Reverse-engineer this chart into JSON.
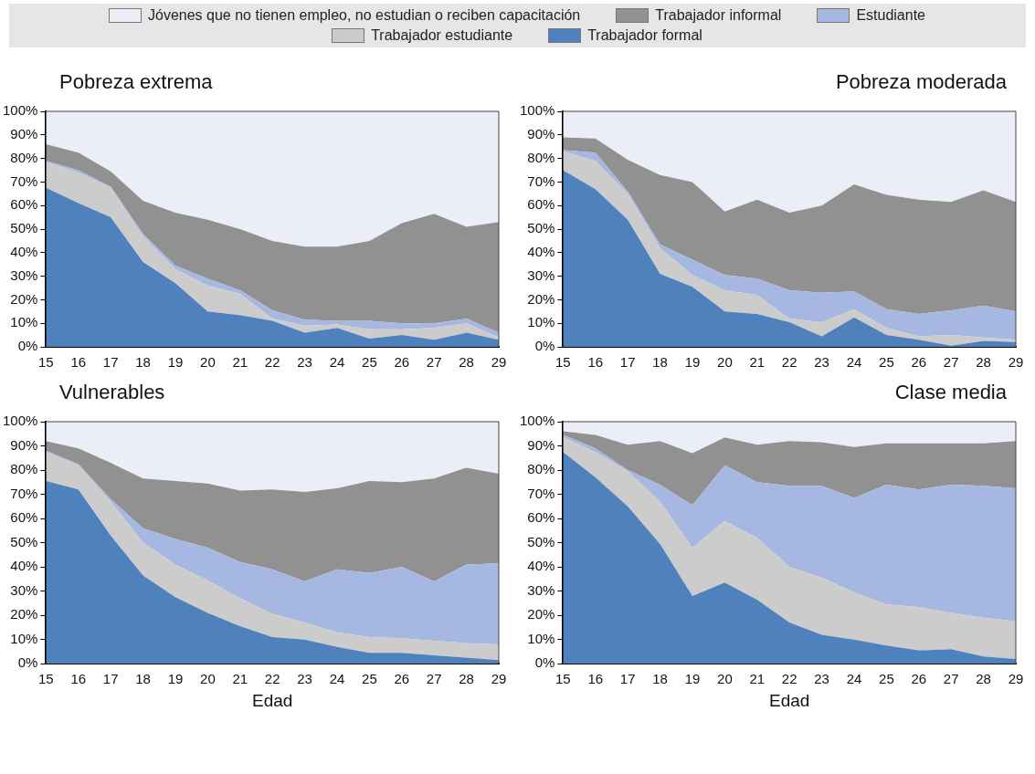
{
  "chart_data": [
    {
      "type": "area",
      "title": "Pobreza extrema",
      "stacked": true,
      "legend": "top",
      "marker": "none",
      "x": [
        15,
        16,
        17,
        18,
        19,
        20,
        21,
        22,
        23,
        24,
        25,
        26,
        27,
        28,
        29
      ],
      "xlim": [
        15,
        29
      ],
      "xticks": [
        15,
        16,
        17,
        18,
        19,
        20,
        21,
        22,
        23,
        24,
        25,
        26,
        27,
        28,
        29
      ],
      "ylim": [
        0,
        100
      ],
      "yticks": [
        {
          "value": 0,
          "label": "0%"
        },
        {
          "value": 10,
          "label": "10%"
        },
        {
          "value": 20,
          "label": "20%"
        },
        {
          "value": 30,
          "label": "30%"
        },
        {
          "value": 40,
          "label": "40%"
        },
        {
          "value": 50,
          "label": "50%"
        },
        {
          "value": 60,
          "label": "60%"
        },
        {
          "value": 70,
          "label": "70%"
        },
        {
          "value": 80,
          "label": "80%"
        },
        {
          "value": 90,
          "label": "90%"
        },
        {
          "value": 100,
          "label": "100%"
        }
      ],
      "series": [
        {
          "name": "Trabajador formal",
          "color": "#4f81bd",
          "values": [
            67.5,
            61,
            55,
            36,
            27,
            15,
            13.5,
            11,
            6,
            8,
            3.5,
            5,
            3,
            6,
            3
          ]
        },
        {
          "name": "Trabajador estudiante",
          "color": "#cccccc",
          "values": [
            11,
            13,
            12.5,
            11,
            6,
            11,
            9,
            1,
            3,
            1.5,
            4,
            2.5,
            5,
            4,
            1
          ]
        },
        {
          "name": "Estudiante",
          "color": "#a6b7e1",
          "values": [
            0.5,
            1,
            0.5,
            1,
            1.5,
            3,
            1.5,
            3.5,
            2.5,
            1.5,
            3.5,
            2.5,
            2,
            2,
            2
          ]
        },
        {
          "name": "Trabajador informal",
          "color": "#919191",
          "values": [
            7,
            7.5,
            6.5,
            14,
            22.5,
            25,
            26,
            29.5,
            31,
            31.5,
            34,
            42.5,
            46.5,
            39,
            47
          ]
        },
        {
          "name": "Jóvenes que no tienen empleo, no estudian o reciben capacitación",
          "color": "#eceef7",
          "values": [
            14,
            17.5,
            25.5,
            38,
            43,
            46,
            50,
            55,
            57.5,
            57.5,
            55,
            47.5,
            43.5,
            49,
            47
          ]
        }
      ]
    },
    {
      "type": "area",
      "title": "Pobreza moderada",
      "stacked": true,
      "marker": "none",
      "x": [
        15,
        16,
        17,
        18,
        19,
        20,
        21,
        22,
        23,
        24,
        25,
        26,
        27,
        28,
        29
      ],
      "xlim": [
        15,
        29
      ],
      "xticks": [
        15,
        16,
        17,
        18,
        19,
        20,
        21,
        22,
        23,
        24,
        25,
        26,
        27,
        28,
        29
      ],
      "ylim": [
        0,
        100
      ],
      "yticks": [
        {
          "value": 0,
          "label": "0%"
        },
        {
          "value": 10,
          "label": "10%"
        },
        {
          "value": 20,
          "label": "20%"
        },
        {
          "value": 30,
          "label": "30%"
        },
        {
          "value": 40,
          "label": "40%"
        },
        {
          "value": 50,
          "label": "50%"
        },
        {
          "value": 60,
          "label": "60%"
        },
        {
          "value": 70,
          "label": "70%"
        },
        {
          "value": 80,
          "label": "80%"
        },
        {
          "value": 90,
          "label": "90%"
        },
        {
          "value": 100,
          "label": "100%"
        }
      ],
      "series": [
        {
          "color": "#4f81bd",
          "values": [
            75,
            67,
            54,
            31,
            25.5,
            15,
            14,
            10.5,
            4.5,
            12.5,
            5,
            3,
            0.5,
            2.5,
            2
          ]
        },
        {
          "color": "#cccccc",
          "values": [
            8,
            12,
            11,
            11,
            5,
            9,
            8,
            1.5,
            6,
            3.5,
            3,
            1.5,
            4.5,
            1.5,
            1
          ]
        },
        {
          "color": "#a6b7e1",
          "values": [
            0.5,
            3.5,
            1,
            1.5,
            6.5,
            6.5,
            7,
            12,
            12.5,
            7.5,
            8,
            9.5,
            10.5,
            13.5,
            12
          ]
        },
        {
          "color": "#919191",
          "values": [
            5.5,
            6,
            13.5,
            29.5,
            33,
            27,
            33.5,
            33,
            37,
            45.5,
            48.5,
            48.5,
            46,
            49,
            46.5
          ]
        },
        {
          "color": "#eceef7",
          "values": [
            11,
            11.5,
            20.5,
            27,
            30,
            42.5,
            37.5,
            43,
            40,
            31,
            35.5,
            37.5,
            38.5,
            33.5,
            38.5
          ]
        }
      ]
    },
    {
      "type": "area",
      "title": "Vulnerables",
      "xlabel": "Edad",
      "stacked": true,
      "marker": "none",
      "x": [
        15,
        16,
        17,
        18,
        19,
        20,
        21,
        22,
        23,
        24,
        25,
        26,
        27,
        28,
        29
      ],
      "xlim": [
        15,
        29
      ],
      "xticks": [
        15,
        16,
        17,
        18,
        19,
        20,
        21,
        22,
        23,
        24,
        25,
        26,
        27,
        28,
        29
      ],
      "ylim": [
        0,
        100
      ],
      "yticks": [
        {
          "value": 0,
          "label": "0%"
        },
        {
          "value": 10,
          "label": "10%"
        },
        {
          "value": 20,
          "label": "20%"
        },
        {
          "value": 30,
          "label": "30%"
        },
        {
          "value": 40,
          "label": "40%"
        },
        {
          "value": 50,
          "label": "50%"
        },
        {
          "value": 60,
          "label": "60%"
        },
        {
          "value": 70,
          "label": "70%"
        },
        {
          "value": 80,
          "label": "80%"
        },
        {
          "value": 90,
          "label": "90%"
        },
        {
          "value": 100,
          "label": "100%"
        }
      ],
      "series": [
        {
          "color": "#4f81bd",
          "values": [
            75.5,
            72,
            53,
            36.5,
            27.5,
            21,
            15.5,
            11,
            10,
            7,
            4.5,
            4.5,
            3.5,
            2.5,
            1.5
          ]
        },
        {
          "color": "#cccccc",
          "values": [
            12,
            10,
            14,
            13.5,
            13.5,
            13.5,
            11.5,
            9.5,
            7,
            6,
            6.5,
            6,
            6,
            6,
            6.5
          ]
        },
        {
          "color": "#a6b7e1",
          "values": [
            0.5,
            0.5,
            1,
            6,
            10.5,
            13.5,
            15,
            18.5,
            17,
            26,
            26.5,
            29.5,
            24.5,
            32.5,
            33.5
          ]
        },
        {
          "color": "#919191",
          "values": [
            4,
            6.5,
            15,
            20.5,
            24,
            26.5,
            29.5,
            33,
            37,
            33.5,
            38,
            35,
            42.5,
            40,
            37
          ]
        },
        {
          "color": "#eceef7",
          "values": [
            8,
            11,
            17,
            23.5,
            24.5,
            25.5,
            28.5,
            28,
            29,
            27.5,
            24.5,
            25,
            23.5,
            19,
            21.5
          ]
        }
      ]
    },
    {
      "type": "area",
      "title": "Clase media",
      "xlabel": "Edad",
      "stacked": true,
      "marker": "none",
      "x": [
        15,
        16,
        17,
        18,
        19,
        20,
        21,
        22,
        23,
        24,
        25,
        26,
        27,
        28,
        29
      ],
      "xlim": [
        15,
        29
      ],
      "xticks": [
        15,
        16,
        17,
        18,
        19,
        20,
        21,
        22,
        23,
        24,
        25,
        26,
        27,
        28,
        29
      ],
      "ylim": [
        0,
        100
      ],
      "yticks": [
        {
          "value": 0,
          "label": "0%"
        },
        {
          "value": 10,
          "label": "10%"
        },
        {
          "value": 20,
          "label": "20%"
        },
        {
          "value": 30,
          "label": "30%"
        },
        {
          "value": 40,
          "label": "40%"
        },
        {
          "value": 50,
          "label": "50%"
        },
        {
          "value": 60,
          "label": "60%"
        },
        {
          "value": 70,
          "label": "70%"
        },
        {
          "value": 80,
          "label": "80%"
        },
        {
          "value": 90,
          "label": "90%"
        },
        {
          "value": 100,
          "label": "100%"
        }
      ],
      "series": [
        {
          "color": "#4f81bd",
          "values": [
            87.5,
            77,
            65,
            49.5,
            28,
            33.5,
            26.5,
            17,
            12,
            10,
            7.5,
            5.5,
            6,
            3,
            2
          ]
        },
        {
          "color": "#cccccc",
          "values": [
            6,
            10.5,
            14.5,
            17.5,
            20,
            25.5,
            25.5,
            23,
            23.5,
            19.5,
            17,
            18,
            15,
            16,
            15.5
          ]
        },
        {
          "color": "#a6b7e1",
          "values": [
            1,
            1.5,
            0.5,
            7,
            17.5,
            23,
            23,
            33.5,
            38,
            39,
            49.5,
            48.5,
            53,
            54.5,
            55
          ]
        },
        {
          "color": "#919191",
          "values": [
            1.5,
            5.5,
            10.5,
            18,
            21.5,
            11.5,
            15.5,
            18.5,
            18,
            21,
            17,
            19,
            17,
            17.5,
            19.5
          ]
        },
        {
          "color": "#eceef7",
          "values": [
            4,
            5.5,
            9.5,
            8,
            13,
            6.5,
            9.5,
            8,
            8.5,
            10.5,
            9,
            9,
            9,
            9,
            8
          ]
        }
      ]
    }
  ]
}
